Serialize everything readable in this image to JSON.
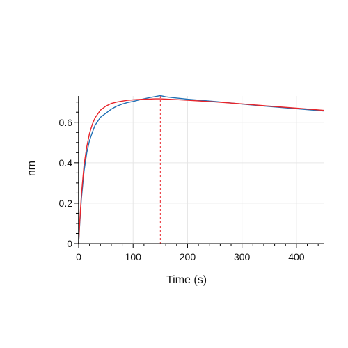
{
  "chart_data": {
    "type": "line",
    "xlabel": "Time (s)",
    "ylabel": "nm",
    "xlim": [
      0,
      450
    ],
    "ylim": [
      0,
      0.73
    ],
    "x_ticks": [
      0,
      100,
      200,
      300,
      400
    ],
    "x_tick_labels": [
      "0",
      "100",
      "200",
      "300",
      "400"
    ],
    "y_ticks": [
      0,
      0.2,
      0.4,
      0.6
    ],
    "y_tick_labels": [
      "0",
      "0.2",
      "0.4",
      "0.6"
    ],
    "grid": true,
    "vertical_markers": [
      0,
      150
    ],
    "colors": {
      "measured": "#1f6fb4",
      "fit": "#e8242a",
      "grid": "#e6e6e6",
      "axis": "#000000"
    },
    "series": [
      {
        "x": [
          0,
          2,
          5,
          10,
          15,
          20,
          25,
          30,
          40,
          50,
          60,
          70,
          80,
          90,
          100,
          110,
          120,
          130,
          140,
          150,
          160,
          180,
          200,
          250,
          300,
          350,
          400,
          450
        ],
        "values": [
          0,
          0.1,
          0.22,
          0.36,
          0.45,
          0.51,
          0.55,
          0.585,
          0.625,
          0.645,
          0.665,
          0.68,
          0.69,
          0.698,
          0.703,
          0.71,
          0.716,
          0.722,
          0.727,
          0.732,
          0.726,
          0.72,
          0.714,
          0.703,
          0.69,
          0.678,
          0.667,
          0.656
        ]
      },
      {
        "x": [
          0,
          2,
          5,
          10,
          15,
          20,
          25,
          30,
          40,
          50,
          60,
          70,
          80,
          90,
          100,
          110,
          120,
          130,
          140,
          150,
          160,
          180,
          200,
          250,
          300,
          350,
          400,
          450
        ],
        "values": [
          0,
          0.11,
          0.24,
          0.39,
          0.48,
          0.545,
          0.59,
          0.622,
          0.66,
          0.68,
          0.693,
          0.7,
          0.705,
          0.709,
          0.711,
          0.713,
          0.714,
          0.715,
          0.716,
          0.716,
          0.715,
          0.712,
          0.709,
          0.701,
          0.691,
          0.68,
          0.67,
          0.659
        ]
      }
    ]
  }
}
